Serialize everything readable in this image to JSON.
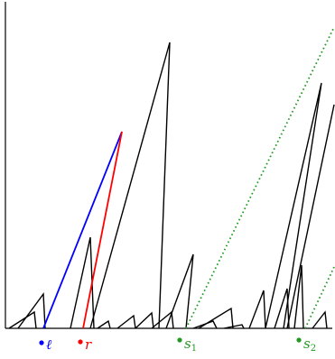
{
  "colors": {
    "axis": "#000000",
    "spikes": "#000000",
    "highlight_left": "#0000ff",
    "highlight_right": "#ff0000",
    "dotted": "#229922",
    "label_l": "#0000ff",
    "label_r": "#ff0000",
    "label_s": "#229922"
  },
  "labels": {
    "l": "ℓ",
    "r": "r",
    "s1_main": "s",
    "s1_sub": "1",
    "s2_main": "s",
    "s2_sub": "2"
  }
}
